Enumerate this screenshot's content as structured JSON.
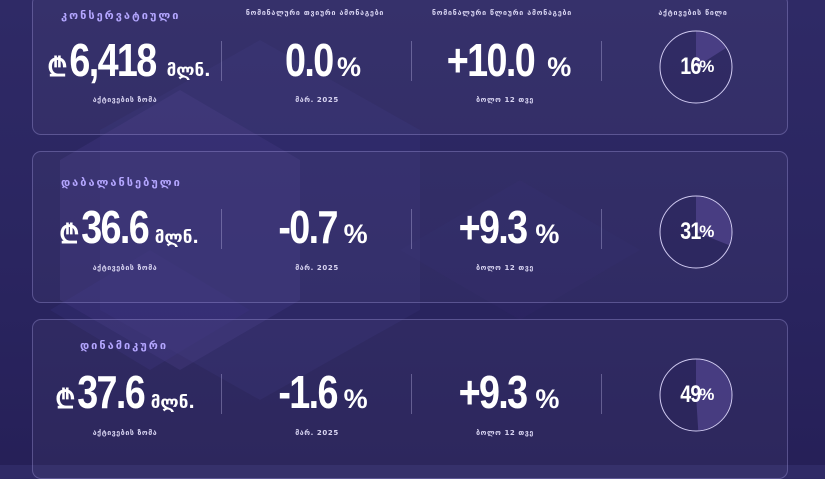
{
  "headers": {
    "nominal_monthly": "ნომინალური თვიური ამონაგები",
    "nominal_annual": "ნომინალური წლიური ამონაგები",
    "share": "აქტივების წილი"
  },
  "portfolios": [
    {
      "name": "კონსერვატიული",
      "currency_symbol": "₾",
      "assets_value": "6,418",
      "assets_unit": "მლნ.",
      "assets_label": "აქტივების ზომა",
      "monthly_value": "0.0",
      "monthly_suffix": "%",
      "monthly_label": "მარ. 2025",
      "annual_value": "+10.0",
      "annual_suffix": "%",
      "annual_label": "ბოლო 12 თვე",
      "share_value": "16",
      "share_suffix": "%",
      "share_percent": 16
    },
    {
      "name": "დაბალანსებული",
      "currency_symbol": "₾",
      "assets_value": "36.6",
      "assets_unit": "მლნ.",
      "assets_label": "აქტივების ზომა",
      "monthly_value": "-0.7",
      "monthly_suffix": "%",
      "monthly_label": "მარ. 2025",
      "annual_value": "+9.3",
      "annual_suffix": "%",
      "annual_label": "ბოლო 12 თვე",
      "share_value": "31",
      "share_suffix": "%",
      "share_percent": 31
    },
    {
      "name": "დინამიკური",
      "currency_symbol": "₾",
      "assets_value": "37.6",
      "assets_unit": "მლნ.",
      "assets_label": "აქტივების ზომა",
      "monthly_value": "-1.6",
      "monthly_suffix": "%",
      "monthly_label": "მარ. 2025",
      "annual_value": "+9.3",
      "annual_suffix": "%",
      "annual_label": "ბოლო 12 თვე",
      "share_value": "49",
      "share_suffix": "%",
      "share_percent": 49
    }
  ],
  "colors": {
    "accent": "#b4a6ff",
    "ring_fill": "#5e4f9e",
    "ring_stroke": "#cfc9f0"
  }
}
